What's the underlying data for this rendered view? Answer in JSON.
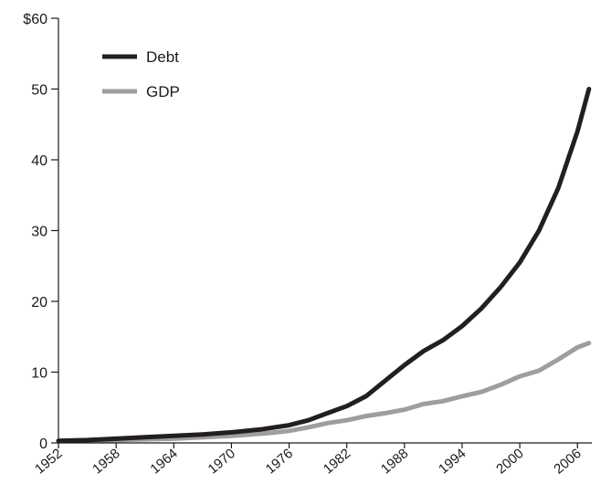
{
  "chart_data": {
    "type": "line",
    "title": "",
    "xlabel": "",
    "ylabel": "",
    "x_range": [
      1952,
      2007.5
    ],
    "ylim": [
      0,
      60
    ],
    "y_ticks": [
      {
        "value": 0,
        "label": "0"
      },
      {
        "value": 10,
        "label": "10"
      },
      {
        "value": 20,
        "label": "20"
      },
      {
        "value": 30,
        "label": "30"
      },
      {
        "value": 40,
        "label": "40"
      },
      {
        "value": 50,
        "label": "50"
      },
      {
        "value": 60,
        "label": "$60"
      }
    ],
    "x_ticks": [
      {
        "value": 1952,
        "label": "1952"
      },
      {
        "value": 1958,
        "label": "1958"
      },
      {
        "value": 1964,
        "label": "1964"
      },
      {
        "value": 1970,
        "label": "1970"
      },
      {
        "value": 1976,
        "label": "1976"
      },
      {
        "value": 1982,
        "label": "1982"
      },
      {
        "value": 1988,
        "label": "1988"
      },
      {
        "value": 1994,
        "label": "1994"
      },
      {
        "value": 2000,
        "label": "2000"
      },
      {
        "value": 2006,
        "label": "2006"
      }
    ],
    "grid": false,
    "legend_position": "top-left",
    "series": [
      {
        "name": "Debt",
        "color": "#231f20",
        "points": [
          [
            1952,
            0.3
          ],
          [
            1955,
            0.4
          ],
          [
            1958,
            0.6
          ],
          [
            1961,
            0.8
          ],
          [
            1964,
            1.0
          ],
          [
            1967,
            1.2
          ],
          [
            1970,
            1.5
          ],
          [
            1973,
            1.9
          ],
          [
            1976,
            2.5
          ],
          [
            1978,
            3.2
          ],
          [
            1980,
            4.2
          ],
          [
            1982,
            5.2
          ],
          [
            1984,
            6.6
          ],
          [
            1986,
            8.8
          ],
          [
            1988,
            11.0
          ],
          [
            1990,
            13.0
          ],
          [
            1992,
            14.5
          ],
          [
            1994,
            16.5
          ],
          [
            1996,
            19.0
          ],
          [
            1998,
            22.0
          ],
          [
            2000,
            25.5
          ],
          [
            2002,
            30.0
          ],
          [
            2004,
            36.0
          ],
          [
            2006,
            44.0
          ],
          [
            2007.2,
            50.0
          ]
        ]
      },
      {
        "name": "GDP",
        "color": "#9e9e9e",
        "points": [
          [
            1952,
            0.3
          ],
          [
            1958,
            0.4
          ],
          [
            1964,
            0.6
          ],
          [
            1970,
            1.0
          ],
          [
            1974,
            1.4
          ],
          [
            1976,
            1.7
          ],
          [
            1978,
            2.2
          ],
          [
            1980,
            2.8
          ],
          [
            1982,
            3.2
          ],
          [
            1984,
            3.8
          ],
          [
            1986,
            4.2
          ],
          [
            1988,
            4.7
          ],
          [
            1990,
            5.5
          ],
          [
            1992,
            5.9
          ],
          [
            1994,
            6.6
          ],
          [
            1996,
            7.2
          ],
          [
            1998,
            8.2
          ],
          [
            2000,
            9.4
          ],
          [
            2002,
            10.2
          ],
          [
            2004,
            11.8
          ],
          [
            2006,
            13.5
          ],
          [
            2007.2,
            14.1
          ]
        ]
      }
    ]
  }
}
